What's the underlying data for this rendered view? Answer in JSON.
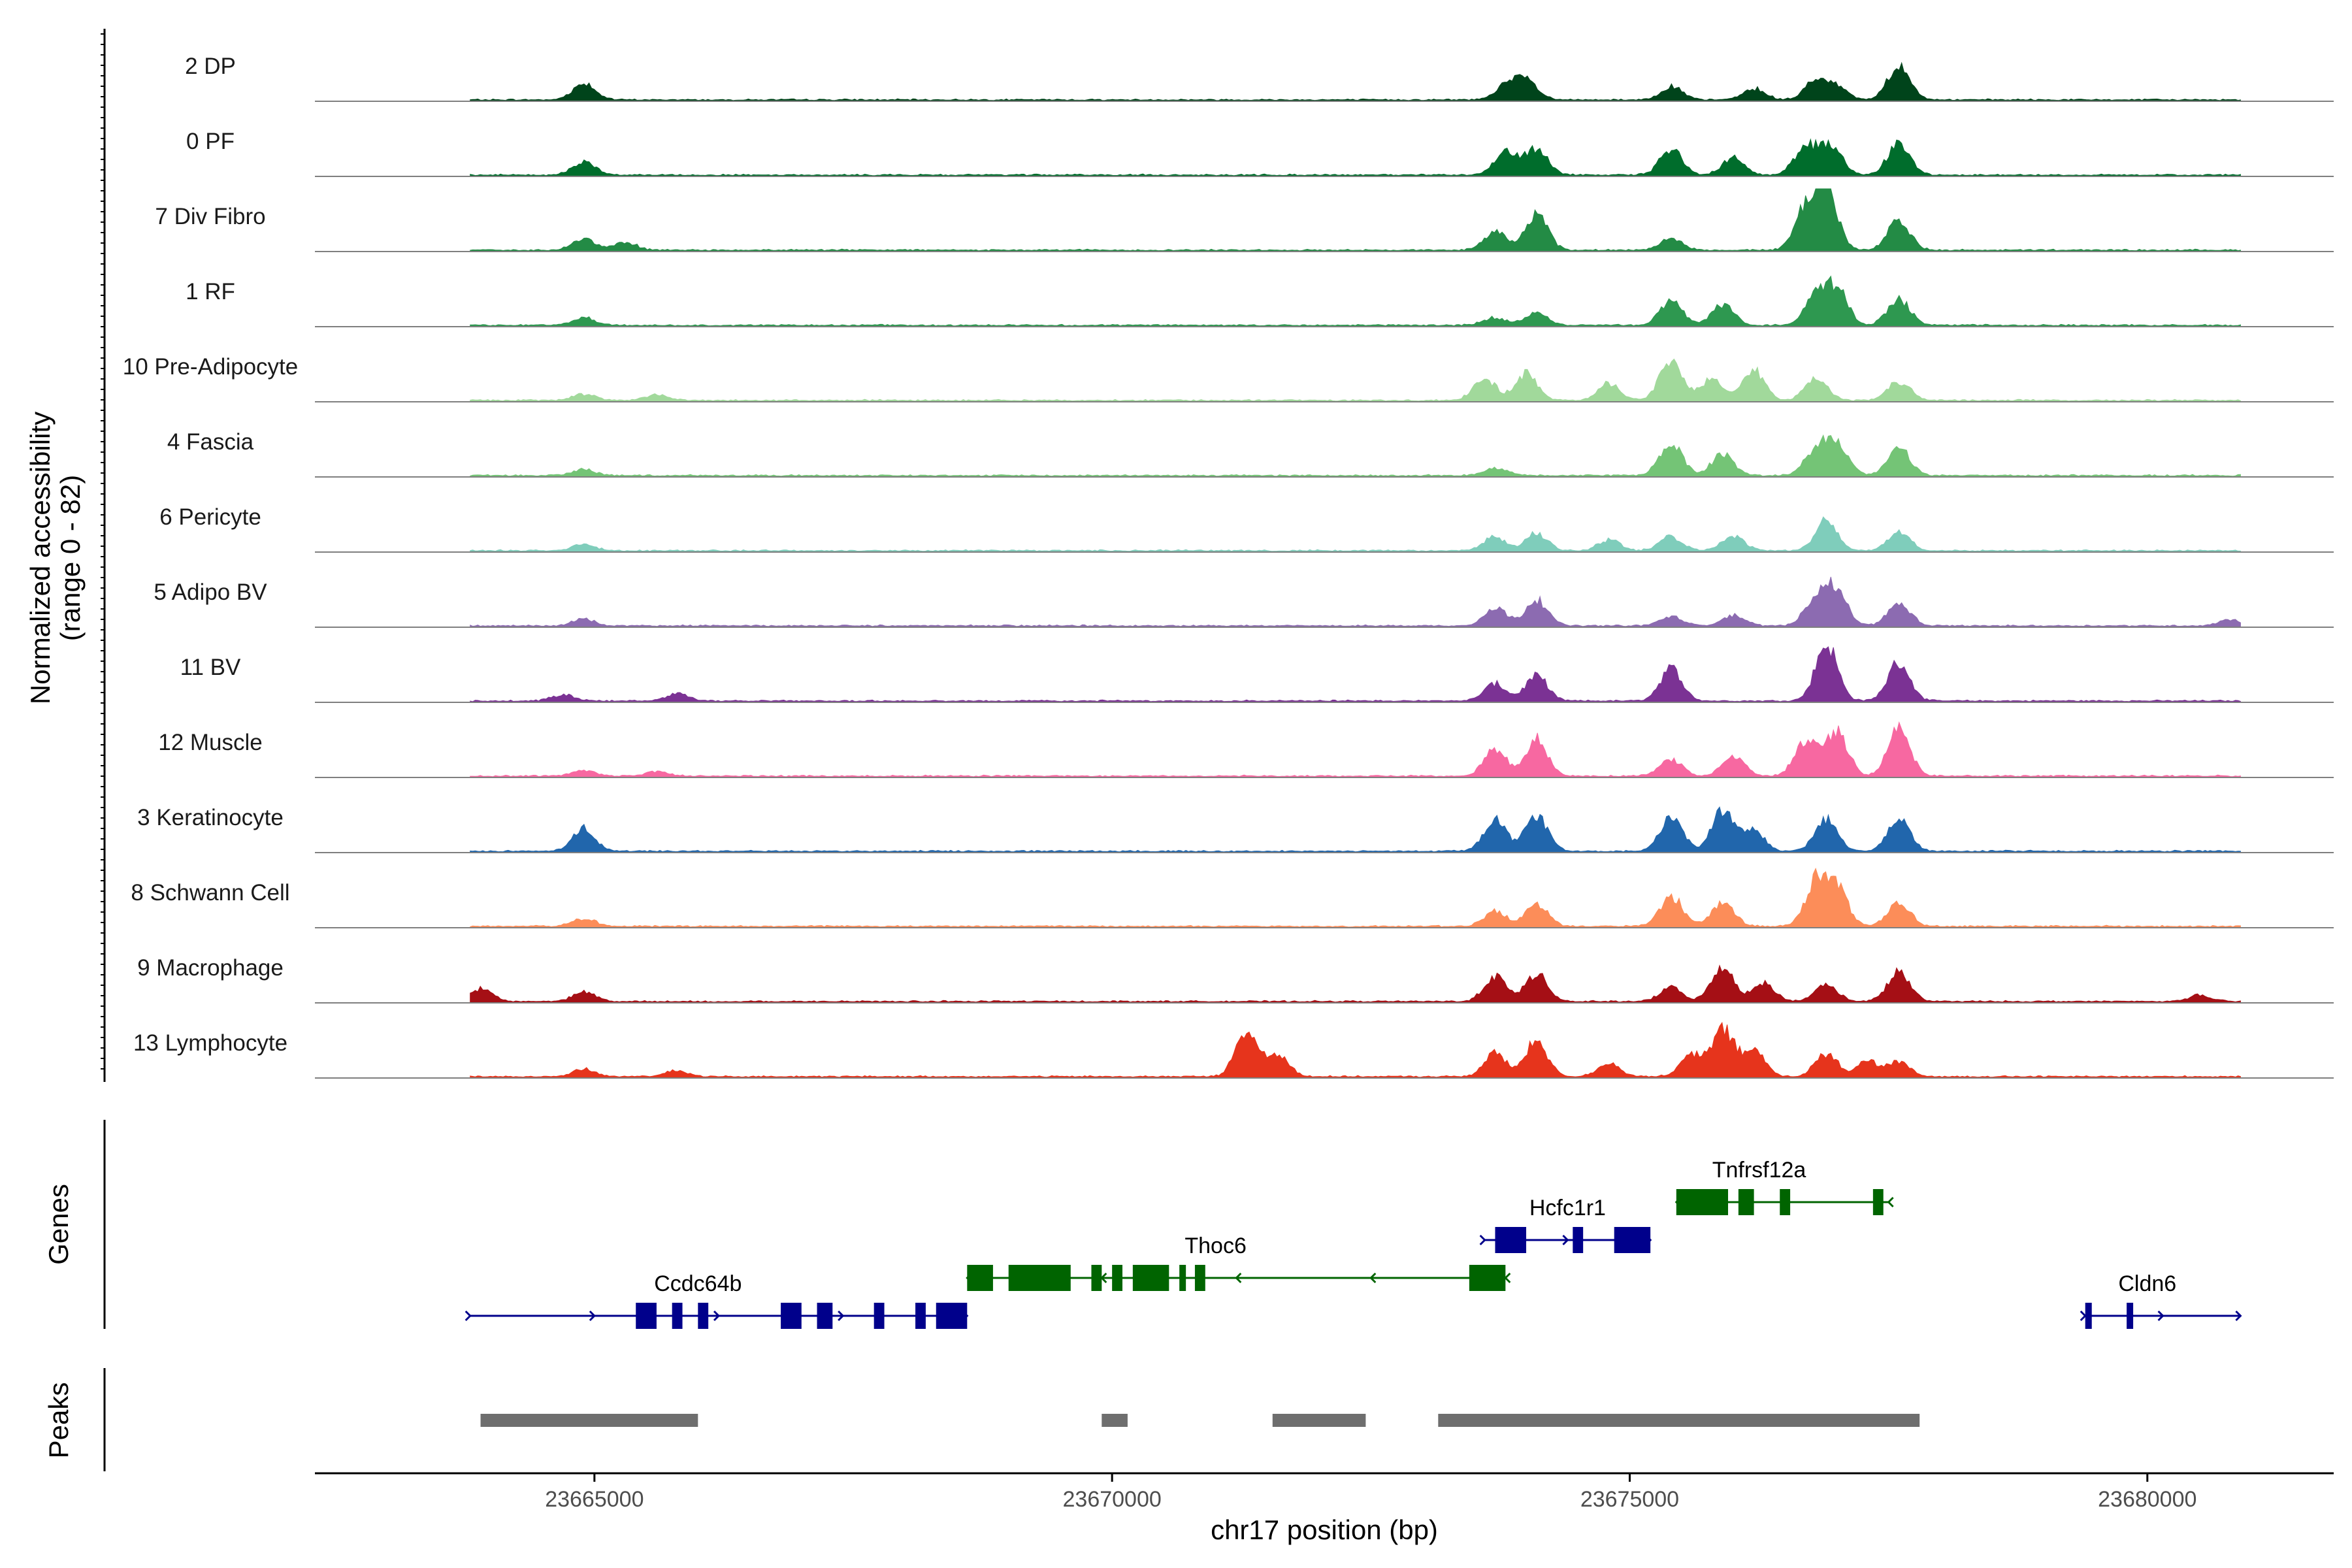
{
  "chart_data": {
    "type": "area",
    "title": "",
    "ylabel_line1": "Normalized accessibility",
    "ylabel_line2": "(range 0 - 82)",
    "yrange": [
      0,
      82
    ],
    "xlabel": "chr17 position (bp)",
    "xlim": [
      23662300,
      23681800
    ],
    "xticks": [
      23665000,
      23670000,
      23675000,
      23680000
    ],
    "xtick_labels": [
      "23665000",
      "23670000",
      "23675000",
      "23680000"
    ],
    "tracks": [
      {
        "name": "2 DP",
        "color": "#00441b",
        "range": [
          23663800,
          23680900
        ],
        "peaks": [
          [
            23664900,
            22
          ],
          [
            23673800,
            18
          ],
          [
            23674000,
            25
          ],
          [
            23675400,
            17
          ],
          [
            23676200,
            15
          ],
          [
            23676800,
            26
          ],
          [
            23677000,
            16
          ],
          [
            23677600,
            45
          ]
        ]
      },
      {
        "name": "0 PF",
        "color": "#006d2c",
        "range": [
          23663800,
          23680900
        ],
        "peaks": [
          [
            23664900,
            18
          ],
          [
            23673800,
            30
          ],
          [
            23674100,
            35
          ],
          [
            23675400,
            33
          ],
          [
            23676000,
            22
          ],
          [
            23676700,
            38
          ],
          [
            23676950,
            36
          ],
          [
            23677600,
            42
          ]
        ]
      },
      {
        "name": "7 Div Fibro",
        "color": "#238b45",
        "range": [
          23663800,
          23680900
        ],
        "peaks": [
          [
            23664900,
            14
          ],
          [
            23665300,
            10
          ],
          [
            23673700,
            24
          ],
          [
            23674100,
            48
          ],
          [
            23675400,
            16
          ],
          [
            23676700,
            52
          ],
          [
            23676900,
            78
          ],
          [
            23677600,
            38
          ]
        ]
      },
      {
        "name": "1 RF",
        "color": "#2e9850",
        "range": [
          23663800,
          23680900
        ],
        "peaks": [
          [
            23664900,
            10
          ],
          [
            23673700,
            10
          ],
          [
            23674100,
            18
          ],
          [
            23675400,
            32
          ],
          [
            23675900,
            26
          ],
          [
            23676800,
            38
          ],
          [
            23677000,
            45
          ],
          [
            23677600,
            34
          ]
        ]
      },
      {
        "name": "10 Pre-Adipocyte",
        "color": "#a1d99b",
        "range": [
          23663800,
          23680900
        ],
        "peaks": [
          [
            23664900,
            8
          ],
          [
            23665600,
            8
          ],
          [
            23673600,
            28
          ],
          [
            23674000,
            34
          ],
          [
            23674800,
            22
          ],
          [
            23675400,
            52
          ],
          [
            23675800,
            30
          ],
          [
            23676200,
            38
          ],
          [
            23676800,
            30
          ],
          [
            23677600,
            24
          ]
        ]
      },
      {
        "name": "4 Fascia",
        "color": "#74c476",
        "range": [
          23663800,
          23680900
        ],
        "peaks": [
          [
            23664900,
            8
          ],
          [
            23673700,
            10
          ],
          [
            23675400,
            44
          ],
          [
            23675900,
            28
          ],
          [
            23676800,
            34
          ],
          [
            23677000,
            44
          ],
          [
            23677600,
            36
          ]
        ]
      },
      {
        "name": "6 Pericyte",
        "color": "#7fcdbb",
        "range": [
          23663800,
          23680900
        ],
        "peaks": [
          [
            23664900,
            8
          ],
          [
            23673700,
            18
          ],
          [
            23674100,
            22
          ],
          [
            23674800,
            14
          ],
          [
            23675400,
            18
          ],
          [
            23676000,
            20
          ],
          [
            23676900,
            38
          ],
          [
            23677600,
            24
          ]
        ]
      },
      {
        "name": "5 Adipo BV",
        "color": "#8c6bb1",
        "range": [
          23663800,
          23680900
        ],
        "peaks": [
          [
            23664900,
            9
          ],
          [
            23673700,
            24
          ],
          [
            23674100,
            34
          ],
          [
            23675400,
            12
          ],
          [
            23676000,
            14
          ],
          [
            23676800,
            38
          ],
          [
            23677000,
            44
          ],
          [
            23677600,
            30
          ],
          [
            23680800,
            8
          ]
        ]
      },
      {
        "name": "11 BV",
        "color": "#7b3294",
        "range": [
          23663800,
          23680900
        ],
        "peaks": [
          [
            23664700,
            8
          ],
          [
            23665800,
            10
          ],
          [
            23673700,
            22
          ],
          [
            23674100,
            32
          ],
          [
            23675400,
            42
          ],
          [
            23676900,
            74
          ],
          [
            23677600,
            50
          ]
        ]
      },
      {
        "name": "12 Muscle",
        "color": "#f768a1",
        "range": [
          23663800,
          23680900
        ],
        "peaks": [
          [
            23664900,
            8
          ],
          [
            23665600,
            6
          ],
          [
            23673700,
            36
          ],
          [
            23674100,
            48
          ],
          [
            23675400,
            22
          ],
          [
            23676000,
            26
          ],
          [
            23676700,
            46
          ],
          [
            23677000,
            58
          ],
          [
            23677600,
            60
          ]
        ]
      },
      {
        "name": "3 Keratinocyte",
        "color": "#2166ac",
        "range": [
          23663800,
          23680900
        ],
        "peaks": [
          [
            23664900,
            30
          ],
          [
            23673700,
            42
          ],
          [
            23674100,
            46
          ],
          [
            23675400,
            46
          ],
          [
            23675900,
            54
          ],
          [
            23676200,
            26
          ],
          [
            23676900,
            40
          ],
          [
            23677600,
            40
          ]
        ]
      },
      {
        "name": "8 Schwann Cell",
        "color": "#fc8d59",
        "range": [
          23663800,
          23680900
        ],
        "peaks": [
          [
            23664900,
            10
          ],
          [
            23673700,
            20
          ],
          [
            23674100,
            30
          ],
          [
            23675400,
            40
          ],
          [
            23675900,
            32
          ],
          [
            23676800,
            56
          ],
          [
            23677000,
            48
          ],
          [
            23677600,
            32
          ]
        ]
      },
      {
        "name": "9 Macrophage",
        "color": "#a50f15",
        "range": [
          23663800,
          23680900
        ],
        "peaks": [
          [
            23663900,
            16
          ],
          [
            23664900,
            12
          ],
          [
            23673700,
            32
          ],
          [
            23674100,
            36
          ],
          [
            23675400,
            18
          ],
          [
            23675900,
            46
          ],
          [
            23676300,
            24
          ],
          [
            23676900,
            22
          ],
          [
            23677600,
            38
          ],
          [
            23680500,
            8
          ]
        ]
      },
      {
        "name": "13 Lymphocyte",
        "color": "#e6341c",
        "range": [
          23663800,
          23680900
        ],
        "peaks": [
          [
            23664900,
            10
          ],
          [
            23665800,
            8
          ],
          [
            23671300,
            58
          ],
          [
            23671600,
            30
          ],
          [
            23673700,
            30
          ],
          [
            23674100,
            46
          ],
          [
            23674800,
            18
          ],
          [
            23675600,
            28
          ],
          [
            23675900,
            60
          ],
          [
            23676200,
            34
          ],
          [
            23676900,
            30
          ],
          [
            23677300,
            20
          ],
          [
            23677600,
            18
          ]
        ]
      }
    ],
    "genes_label": "Genes",
    "genes": [
      {
        "name": "Ccdc64b",
        "color": "#00008b",
        "strand": "+",
        "start": 23663800,
        "end": 23668600,
        "exons": [
          [
            23665400,
            23665600
          ],
          [
            23665750,
            23665850
          ],
          [
            23666000,
            23666100
          ],
          [
            23666800,
            23667000
          ],
          [
            23667150,
            23667300
          ],
          [
            23667700,
            23667800
          ],
          [
            23668100,
            23668200
          ],
          [
            23668300,
            23668600
          ]
        ],
        "label_pos": 23666000
      },
      {
        "name": "Thoc6",
        "color": "#006400",
        "strand": "-",
        "start": 23668600,
        "end": 23673800,
        "exons": [
          [
            23668600,
            23668850
          ],
          [
            23669000,
            23669600
          ],
          [
            23669800,
            23669900
          ],
          [
            23670000,
            23670100
          ],
          [
            23670200,
            23670550
          ],
          [
            23670650,
            23670700
          ],
          [
            23670800,
            23670900
          ],
          [
            23673450,
            23673800
          ]
        ],
        "label_pos": 23671000
      },
      {
        "name": "Hcfc1r1",
        "color": "#00008b",
        "strand": "+",
        "start": 23673600,
        "end": 23675200,
        "exons": [
          [
            23673700,
            23674000
          ],
          [
            23674450,
            23674550
          ],
          [
            23674850,
            23675200
          ]
        ],
        "label_pos": 23674400
      },
      {
        "name": "Tnfrsf12a",
        "color": "#006400",
        "strand": "-",
        "start": 23675450,
        "end": 23677500,
        "exons": [
          [
            23675450,
            23675950
          ],
          [
            23676050,
            23676200
          ],
          [
            23676450,
            23676550
          ],
          [
            23677350,
            23677450
          ]
        ],
        "label_pos": 23676250
      },
      {
        "name": "Cldn6",
        "color": "#00008b",
        "strand": "+",
        "start": 23679400,
        "end": 23680900,
        "exons": [
          [
            23679400,
            23679450
          ],
          [
            23679800,
            23679850
          ]
        ],
        "label_pos": 23680000
      }
    ],
    "peaks_label": "Peaks",
    "peak_regions": [
      [
        23663900,
        23666000
      ],
      [
        23669900,
        23670150
      ],
      [
        23671550,
        23672450
      ],
      [
        23673150,
        23677800
      ]
    ],
    "peak_color": "#6e6e6e"
  }
}
